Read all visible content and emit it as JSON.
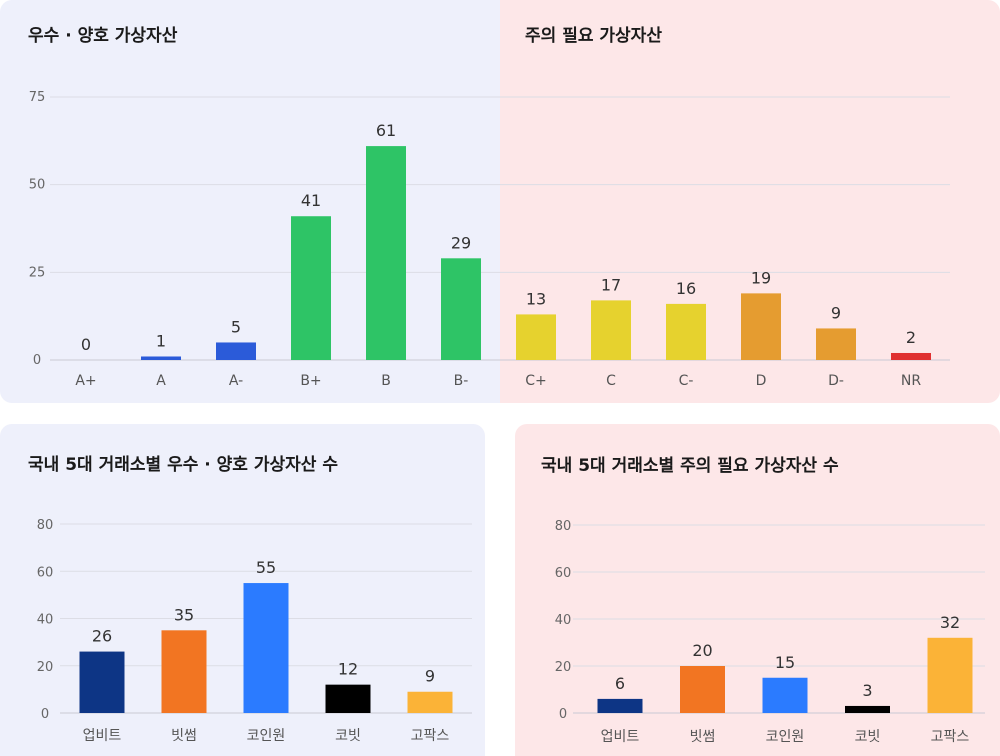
{
  "colors": {
    "good_bg": "#EEF0FB",
    "warn_bg": "#FDE7E8",
    "grid": "#DCDDE5",
    "text": "#333333"
  },
  "chart_data": [
    {
      "type": "bar",
      "title_good": "우수 · 양호 가상자산",
      "title_warn": "주의 필요 가상자산",
      "categories": [
        "A+",
        "A",
        "A-",
        "B+",
        "B",
        "B-",
        "C+",
        "C",
        "C-",
        "D",
        "D-",
        "NR"
      ],
      "values": [
        0,
        1,
        5,
        41,
        61,
        29,
        13,
        17,
        16,
        19,
        9,
        2
      ],
      "colors": [
        "#2B5BD9",
        "#2B5BD9",
        "#2B5BD9",
        "#2EC466",
        "#2EC466",
        "#2EC466",
        "#E6D22E",
        "#E6D22E",
        "#E6D22E",
        "#E59C30",
        "#E59C30",
        "#E03030"
      ],
      "ylim": [
        0,
        75
      ],
      "yticks": [
        0,
        25,
        50,
        75
      ],
      "grid": true
    },
    {
      "type": "bar",
      "title": "국내 5대 거래소별 우수 · 양호 가상자산 수",
      "categories": [
        "업비트",
        "빗썸",
        "코인원",
        "코빗",
        "고팍스"
      ],
      "values": [
        26,
        35,
        55,
        12,
        9
      ],
      "colors": [
        "#0D3585",
        "#F27522",
        "#2B7BFF",
        "#000000",
        "#FBB337"
      ],
      "ylim": [
        0,
        80
      ],
      "yticks": [
        0,
        20,
        40,
        60,
        80
      ],
      "grid": true
    },
    {
      "type": "bar",
      "title": "국내 5대 거래소별 주의 필요 가상자산 수",
      "categories": [
        "업비트",
        "빗썸",
        "코인원",
        "코빗",
        "고팍스"
      ],
      "values": [
        6,
        20,
        15,
        3,
        32
      ],
      "colors": [
        "#0D3585",
        "#F27522",
        "#2B7BFF",
        "#000000",
        "#FBB337"
      ],
      "ylim": [
        0,
        80
      ],
      "yticks": [
        0,
        20,
        40,
        60,
        80
      ],
      "grid": true
    }
  ]
}
